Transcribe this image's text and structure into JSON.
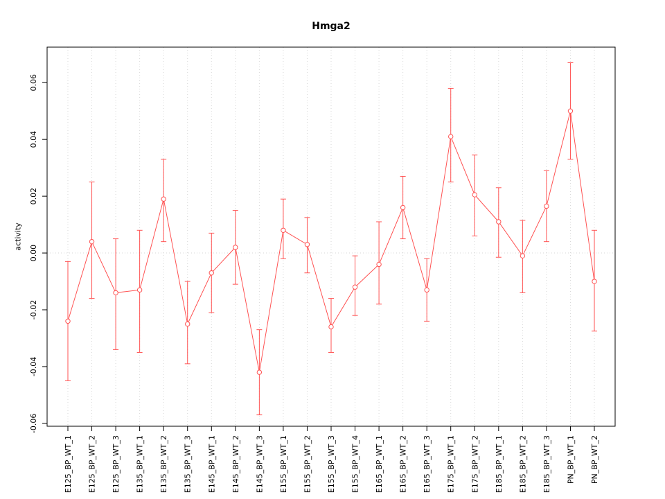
{
  "chart_data": {
    "type": "line",
    "error_bars": true,
    "title": "Hmga2",
    "xlabel": "",
    "ylabel": "activity",
    "ylim": [
      -0.061,
      0.0725
    ],
    "yticks": [
      -0.06,
      -0.04,
      -0.02,
      0.0,
      0.02,
      0.04,
      0.06
    ],
    "grid": true,
    "legend": "none",
    "color": "#ff5252",
    "grid_color": "#d6d6d6",
    "categories": [
      "E125_BP_WT_1",
      "E125_BP_WT_2",
      "E125_BP_WT_3",
      "E135_BP_WT_1",
      "E135_BP_WT_2",
      "E135_BP_WT_3",
      "E145_BP_WT_1",
      "E145_BP_WT_2",
      "E145_BP_WT_3",
      "E155_BP_WT_1",
      "E155_BP_WT_2",
      "E155_BP_WT_3",
      "E155_BP_WT_4",
      "E165_BP_WT_1",
      "E165_BP_WT_2",
      "E165_BP_WT_3",
      "E175_BP_WT_1",
      "E175_BP_WT_2",
      "E185_BP_WT_1",
      "E185_BP_WT_2",
      "E185_BP_WT_3",
      "PN_BP_WT_1",
      "PN_BP_WT_2"
    ],
    "values": [
      -0.024,
      0.004,
      -0.014,
      -0.013,
      0.019,
      -0.025,
      -0.007,
      0.002,
      -0.042,
      0.008,
      0.003,
      -0.026,
      -0.012,
      -0.004,
      0.016,
      -0.013,
      0.041,
      0.0205,
      0.011,
      -0.001,
      0.0165,
      0.05,
      -0.01
    ],
    "error_low": [
      -0.045,
      -0.016,
      -0.034,
      -0.035,
      0.004,
      -0.039,
      -0.021,
      -0.011,
      -0.057,
      -0.002,
      -0.007,
      -0.035,
      -0.022,
      -0.018,
      0.005,
      -0.024,
      0.025,
      0.006,
      -0.0015,
      -0.014,
      0.004,
      0.033,
      -0.0275
    ],
    "error_high": [
      -0.003,
      0.025,
      0.005,
      0.008,
      0.033,
      -0.01,
      0.007,
      0.015,
      -0.027,
      0.019,
      0.0125,
      -0.016,
      -0.001,
      0.011,
      0.027,
      -0.002,
      0.058,
      0.0345,
      0.023,
      0.0115,
      0.029,
      0.067,
      0.008
    ]
  }
}
